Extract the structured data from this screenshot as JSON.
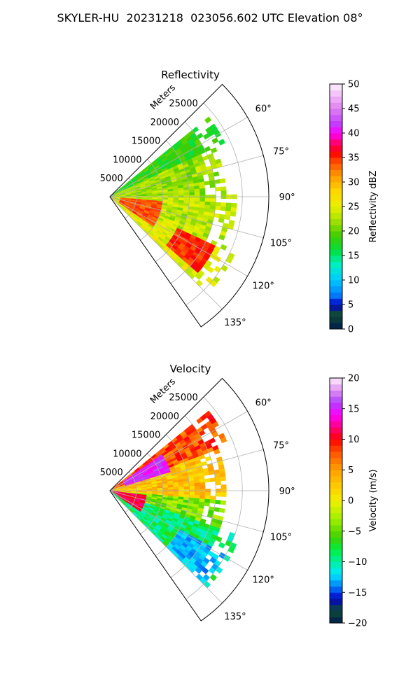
{
  "title": "SKYLER-HU  20231218  023056.602 UTC Elevation 08°",
  "chart_data": [
    {
      "type": "heatmap",
      "projection": "polar-sector",
      "title": "Reflectivity",
      "range_label": "Meters",
      "range_ticks": [
        "5000",
        "10000",
        "15000",
        "20000",
        "25000"
      ],
      "range_tick_values": [
        5000,
        10000,
        15000,
        20000,
        25000
      ],
      "range_max": 30000,
      "azimuth_ticks": [
        "60°",
        "75°",
        "90°",
        "105°",
        "120°",
        "135°"
      ],
      "azimuth_tick_values": [
        60,
        75,
        90,
        105,
        120,
        135
      ],
      "azimuth_range": [
        45,
        145
      ],
      "grid": true,
      "colorbar": {
        "label": "Reflectivity dBZ",
        "min": 0,
        "max": 50,
        "ticks": [
          "0",
          "5",
          "10",
          "15",
          "20",
          "25",
          "30",
          "35",
          "40",
          "45",
          "50"
        ],
        "tick_values": [
          0,
          5,
          10,
          15,
          20,
          25,
          30,
          35,
          40,
          45,
          50
        ],
        "colors": [
          {
            "v": 0,
            "c": "#001a4d"
          },
          {
            "v": 3,
            "c": "#0f4d33"
          },
          {
            "v": 5,
            "c": "#0000c8"
          },
          {
            "v": 7,
            "c": "#0080ff"
          },
          {
            "v": 10,
            "c": "#00c8ff"
          },
          {
            "v": 13,
            "c": "#00f0c8"
          },
          {
            "v": 16,
            "c": "#00e040"
          },
          {
            "v": 19,
            "c": "#40cc00"
          },
          {
            "v": 22,
            "c": "#a0e000"
          },
          {
            "v": 25,
            "c": "#e8f000"
          },
          {
            "v": 28,
            "c": "#ffd800"
          },
          {
            "v": 31,
            "c": "#ffa000"
          },
          {
            "v": 34,
            "c": "#ff5000"
          },
          {
            "v": 36,
            "c": "#ff0000"
          },
          {
            "v": 38,
            "c": "#ff0070"
          },
          {
            "v": 40,
            "c": "#ff00ff"
          },
          {
            "v": 42,
            "c": "#c040ff"
          },
          {
            "v": 45,
            "c": "#e080f0"
          },
          {
            "v": 50,
            "c": "#fff0ff"
          }
        ]
      },
      "field_summary": [
        {
          "azimuth": [
            52,
            65
          ],
          "range": [
            0,
            24000
          ],
          "value": 18
        },
        {
          "azimuth": [
            65,
            90
          ],
          "range": [
            0,
            22000
          ],
          "value": 22
        },
        {
          "azimuth": [
            90,
            115
          ],
          "range": [
            0,
            24000
          ],
          "value": 23
        },
        {
          "azimuth": [
            115,
            135
          ],
          "range": [
            0,
            26000
          ],
          "value": 25
        }
      ],
      "cores": [
        {
          "azimuth": [
            95,
            125
          ],
          "range": [
            2000,
            10000
          ],
          "value": 34
        },
        {
          "azimuth": [
            116,
            130
          ],
          "range": [
            14000,
            22000
          ],
          "value": 35
        }
      ]
    },
    {
      "type": "heatmap",
      "projection": "polar-sector",
      "title": "Velocity",
      "range_label": "Meters",
      "range_ticks": [
        "5000",
        "10000",
        "15000",
        "20000",
        "25000"
      ],
      "range_tick_values": [
        5000,
        10000,
        15000,
        20000,
        25000
      ],
      "range_max": 30000,
      "azimuth_ticks": [
        "60°",
        "75°",
        "90°",
        "105°",
        "120°",
        "135°"
      ],
      "azimuth_tick_values": [
        60,
        75,
        90,
        105,
        120,
        135
      ],
      "azimuth_range": [
        45,
        145
      ],
      "grid": true,
      "colorbar": {
        "label": "Velocity (m/s)",
        "min": -20,
        "max": 20,
        "ticks": [
          "−20",
          "−15",
          "−10",
          "−5",
          "0",
          "5",
          "10",
          "15",
          "20"
        ],
        "tick_values": [
          -20,
          -15,
          -10,
          -5,
          0,
          5,
          10,
          15,
          20
        ],
        "colors": [
          {
            "v": -20,
            "c": "#001a4d"
          },
          {
            "v": -18,
            "c": "#0f4d33"
          },
          {
            "v": -16,
            "c": "#0000c8"
          },
          {
            "v": -14,
            "c": "#0080ff"
          },
          {
            "v": -12,
            "c": "#00e8ff"
          },
          {
            "v": -10,
            "c": "#00f0a0"
          },
          {
            "v": -8,
            "c": "#00f040"
          },
          {
            "v": -6,
            "c": "#40d000"
          },
          {
            "v": -3,
            "c": "#a0f000"
          },
          {
            "v": 0,
            "c": "#f0f000"
          },
          {
            "v": 2,
            "c": "#ffd000"
          },
          {
            "v": 5,
            "c": "#ffa000"
          },
          {
            "v": 8,
            "c": "#ff5000"
          },
          {
            "v": 10,
            "c": "#ff0000"
          },
          {
            "v": 12,
            "c": "#ff0080"
          },
          {
            "v": 14,
            "c": "#ff00ff"
          },
          {
            "v": 16,
            "c": "#b040ff"
          },
          {
            "v": 18,
            "c": "#e090f0"
          },
          {
            "v": 20,
            "c": "#fff0ff"
          }
        ]
      },
      "field_summary": [
        {
          "azimuth": [
            52,
            70
          ],
          "range": [
            0,
            24000
          ],
          "value": 8
        },
        {
          "azimuth": [
            70,
            95
          ],
          "range": [
            0,
            22000
          ],
          "value": 3
        },
        {
          "azimuth": [
            95,
            110
          ],
          "range": [
            0,
            22000
          ],
          "value": -4
        },
        {
          "azimuth": [
            110,
            135
          ],
          "range": [
            0,
            26000
          ],
          "value": -9
        }
      ],
      "cores": [
        {
          "azimuth": [
            55,
            72
          ],
          "range": [
            3000,
            12000
          ],
          "value": 15
        },
        {
          "azimuth": [
            98,
            125
          ],
          "range": [
            500,
            7000
          ],
          "value": 11
        },
        {
          "azimuth": [
            120,
            134
          ],
          "range": [
            15000,
            25000
          ],
          "value": -13
        }
      ]
    }
  ]
}
